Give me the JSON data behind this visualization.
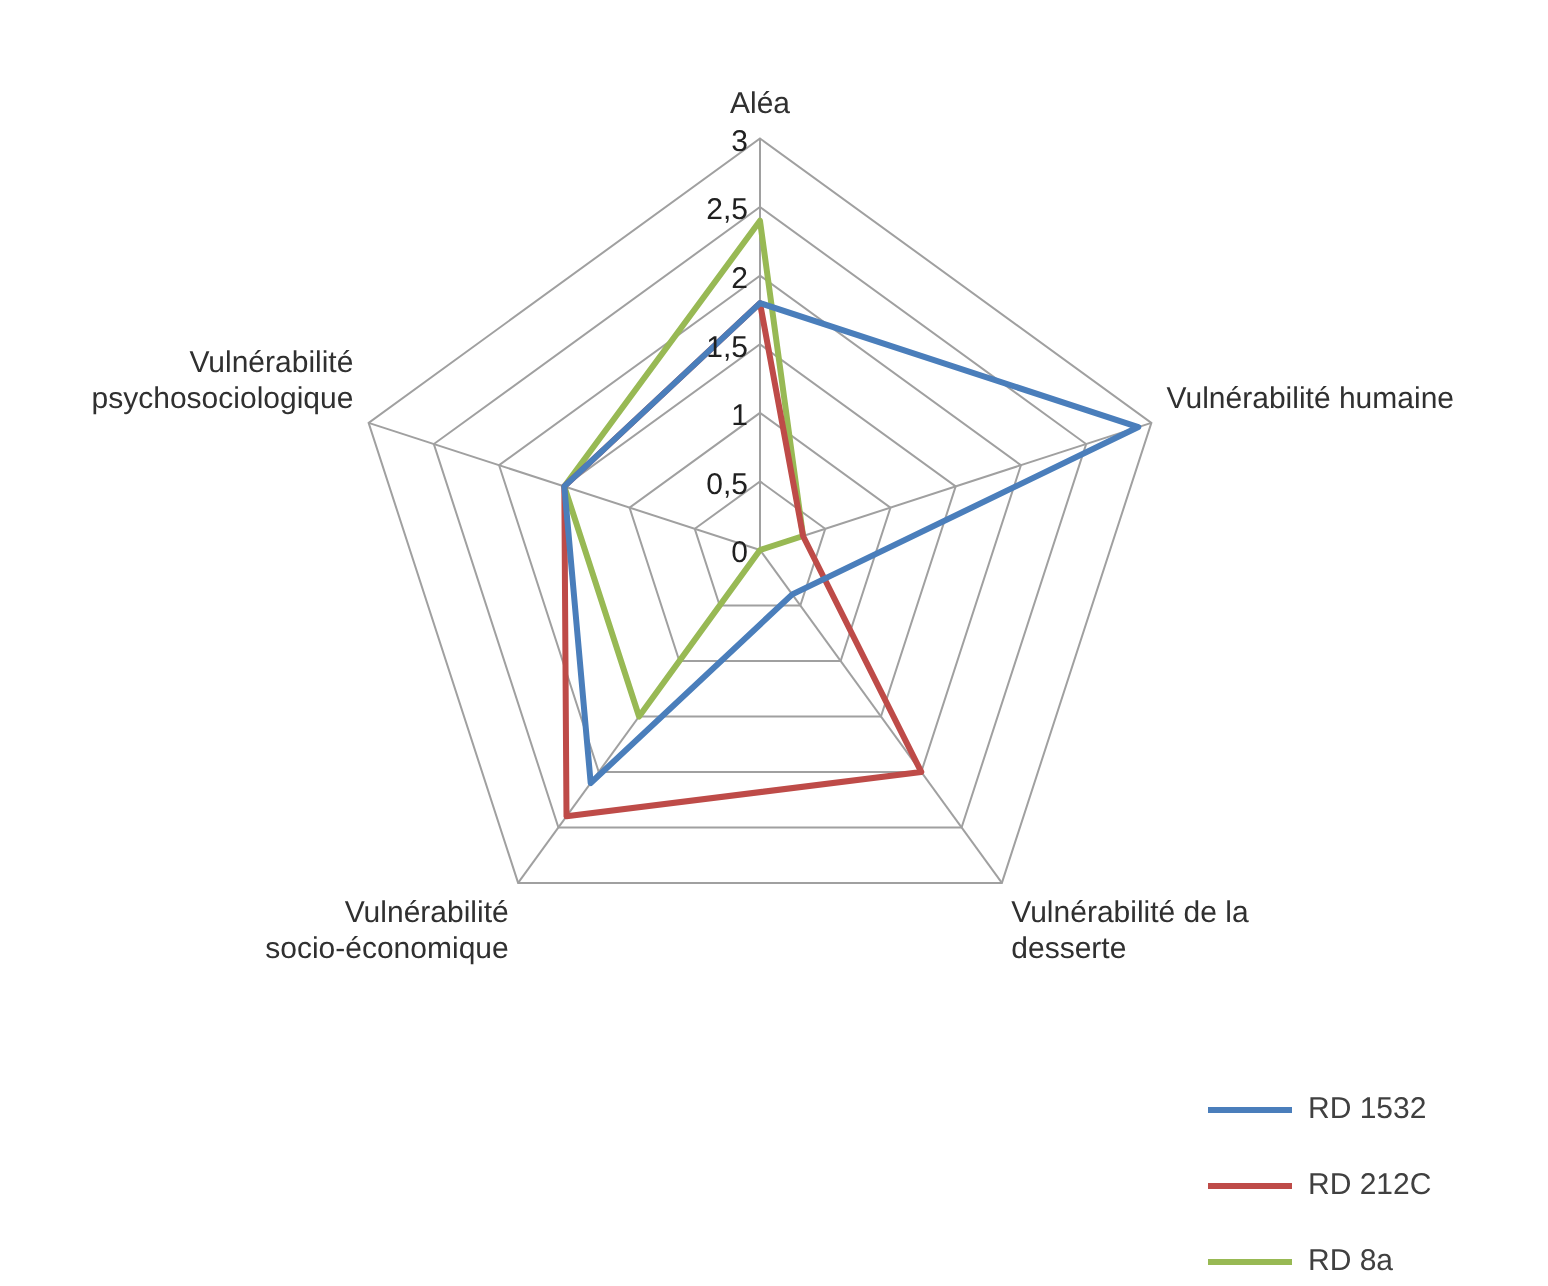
{
  "chart_data": {
    "type": "radar",
    "categories": [
      "Aléa",
      "Vulnérabilité humaine",
      "Vulnérabilité de la desserte",
      "Vulnérabilité socio-économique",
      "Vulnérabilité psychosociologique"
    ],
    "series": [
      {
        "name": "RD 1532",
        "color": "#4a7ebb",
        "values": [
          1.8,
          2.9,
          0.4,
          2.1,
          1.5
        ]
      },
      {
        "name": "RD 212C",
        "color": "#be4b48",
        "values": [
          1.8,
          0.33,
          2.0,
          2.4,
          1.5
        ]
      },
      {
        "name": "RD 8a",
        "color": "#98b954",
        "values": [
          2.4,
          0.33,
          0,
          1.5,
          1.5
        ]
      }
    ],
    "ylim": [
      0,
      3
    ],
    "yticks": [
      0,
      {
        "value": 0.5,
        "label": "0,5"
      },
      1,
      {
        "value": 1.5,
        "label": "1,5"
      },
      2,
      {
        "value": 2.5,
        "label": "2,5"
      },
      3
    ],
    "grid": true,
    "legend": "bottom right",
    "marker": "none",
    "line_style": "solid"
  }
}
